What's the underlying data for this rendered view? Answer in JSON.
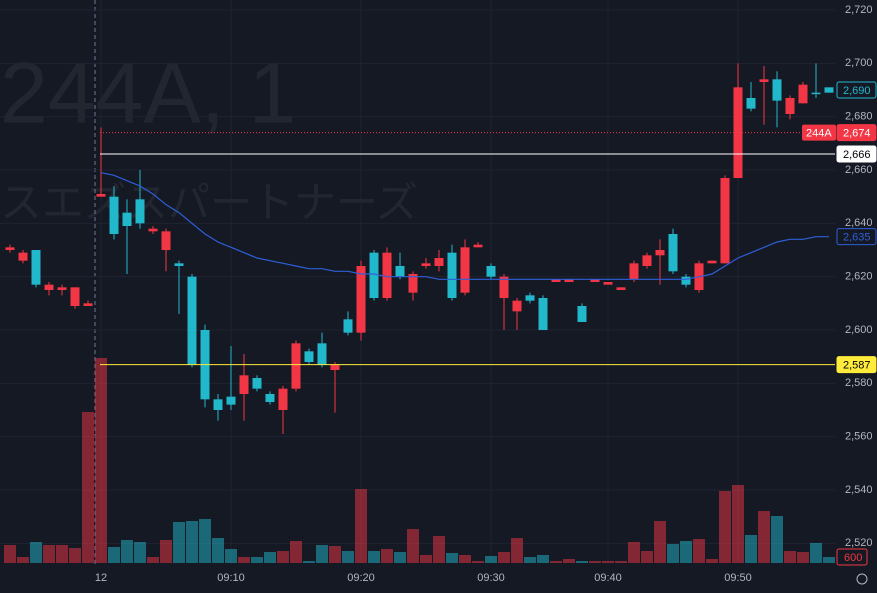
{
  "chart_data": {
    "type": "candlestick",
    "watermark": "244A, 1",
    "watermark_name": "スエズスパートナーズ",
    "categories": [
      null,
      null,
      null,
      null,
      null,
      null,
      null,
      "12",
      null,
      null,
      null,
      null,
      null,
      null,
      null,
      null,
      null,
      "09:10",
      null,
      null,
      null,
      null,
      null,
      null,
      null,
      null,
      null,
      "09:20",
      null,
      null,
      null,
      null,
      null,
      null,
      null,
      null,
      null,
      "09:30",
      null,
      null,
      null,
      null,
      null,
      null,
      null,
      null,
      "09:40",
      null,
      null,
      null,
      null,
      null,
      null,
      null,
      null,
      null,
      "09:50",
      null,
      null,
      null,
      null,
      null,
      null,
      null
    ],
    "open": [
      2631,
      2629,
      2617,
      2617,
      2616,
      2616,
      2610,
      2651,
      2636,
      2639,
      2640,
      2638,
      2637,
      2624,
      2587,
      2574,
      2570,
      2572,
      2583,
      2578,
      2573,
      2578,
      2595,
      2588,
      2587,
      2587,
      2599,
      2624,
      2612,
      2629,
      2620,
      2621,
      2625,
      2627,
      2612,
      2631,
      2632,
      2620,
      2620,
      2611,
      2611,
      2600,
      2619,
      2619,
      2603,
      2619,
      2618,
      2616,
      2625,
      2628,
      2630,
      2622,
      2617,
      2625,
      2626,
      2657,
      2691,
      2683,
      2694,
      2686,
      2687,
      2692,
      2689,
      2689
    ],
    "high": [
      2632,
      2630,
      2630,
      2618,
      2617,
      2616,
      2611,
      2676,
      2654,
      2649,
      2660,
      2639,
      2638,
      2626,
      2621,
      2602,
      2576,
      2594,
      2591,
      2583,
      2577,
      2579,
      2596,
      2593,
      2599,
      2588,
      2607,
      2626,
      2630,
      2631,
      2629,
      2622,
      2627,
      2630,
      2632,
      2634,
      2633,
      2625,
      2621,
      2612,
      2614,
      2613,
      2619,
      2619,
      2610,
      2619,
      2618,
      2616,
      2626,
      2629,
      2634,
      2638,
      2621,
      2626,
      2626,
      2658,
      2700,
      2693,
      2699,
      2697,
      2688,
      2693,
      2700,
      2691
    ],
    "low": [
      2629,
      2625,
      2616,
      2613,
      2613,
      2608,
      2609,
      2650,
      2634,
      2621,
      2638,
      2636,
      2622,
      2606,
      2586,
      2571,
      2566,
      2570,
      2566,
      2577,
      2572,
      2561,
      2577,
      2587,
      2586,
      2569,
      2598,
      2596,
      2611,
      2611,
      2619,
      2611,
      2623,
      2622,
      2611,
      2613,
      2631,
      2619,
      2600,
      2600,
      2610,
      2600,
      2618,
      2618,
      2603,
      2618,
      2617,
      2615,
      2618,
      2623,
      2617,
      2621,
      2616,
      2614,
      2625,
      2625,
      2657,
      2682,
      2677,
      2676,
      2679,
      2685,
      2687,
      2689
    ],
    "close": [
      2630,
      2626,
      2630,
      2615,
      2615,
      2609,
      2609,
      2650,
      2650,
      2644,
      2649,
      2637,
      2630,
      2625,
      2620,
      2600,
      2574,
      2575,
      2576,
      2582,
      2576,
      2570,
      2578,
      2592,
      2595,
      2585,
      2604,
      2599,
      2629,
      2612,
      2624,
      2614,
      2624,
      2624,
      2629,
      2614,
      2631,
      2624,
      2612,
      2607,
      2613,
      2612,
      2618,
      2618,
      2609,
      2618,
      2617,
      2615,
      2619,
      2624,
      2628,
      2636,
      2620,
      2615,
      2625,
      2625,
      2657,
      2687,
      2693,
      2694,
      2681,
      2685,
      2689,
      2691
    ],
    "volume": [
      1800,
      600,
      2100,
      1800,
      1800,
      1500,
      15100,
      20500,
      1600,
      2300,
      2100,
      600,
      2300,
      4100,
      4200,
      4400,
      2500,
      1400,
      600,
      600,
      1100,
      1200,
      2200,
      200,
      1800,
      1700,
      1200,
      7400,
      1200,
      1400,
      1100,
      3400,
      800,
      2700,
      1000,
      800,
      200,
      700,
      1100,
      2500,
      600,
      800,
      200,
      400,
      200,
      200,
      200,
      200,
      2100,
      1200,
      4200,
      1900,
      2200,
      2400,
      400,
      7200,
      7800,
      2800,
      5200,
      4700,
      1200,
      1100,
      2000,
      600
    ],
    "ma": [
      null,
      null,
      null,
      null,
      null,
      null,
      null,
      2659,
      2658,
      2656,
      2654,
      2651,
      2647,
      2644,
      2640,
      2636,
      2633,
      2631,
      2629,
      2627,
      2626,
      2625,
      2624,
      2623,
      2623,
      2622,
      2622,
      2621,
      2621,
      2620,
      2620,
      2620,
      2620,
      2619,
      2619,
      2619,
      2619,
      2619,
      2619,
      2619,
      2619,
      2619,
      2619,
      2619,
      2619,
      2619,
      2619,
      2619,
      2619,
      2619,
      2619,
      2619,
      2619,
      2620,
      2621,
      2624,
      2627,
      2629,
      2631,
      2633,
      2634,
      2634,
      2635,
      2635
    ],
    "up_color": "#22b8cc",
    "down_color": "#f23645",
    "ma_color": "#2e5fd9",
    "ylim": [
      2512,
      2724
    ],
    "yticks": [
      {
        "value": 2520,
        "label": "2,520"
      },
      {
        "value": 2540,
        "label": "2,540"
      },
      {
        "value": 2560,
        "label": "2,560"
      },
      {
        "value": 2580,
        "label": "2,580"
      },
      {
        "value": 2600,
        "label": "2,600"
      },
      {
        "value": 2620,
        "label": "2,620"
      },
      {
        "value": 2640,
        "label": "2,640"
      },
      {
        "value": 2660,
        "label": "2,660"
      },
      {
        "value": 2680,
        "label": "2,680"
      },
      {
        "value": 2700,
        "label": "2,700"
      },
      {
        "value": 2720,
        "label": "2,720"
      }
    ],
    "grid": true,
    "price_tags": [
      {
        "value": 2690,
        "label": "2,690",
        "color": "#22b8cc",
        "filled": false,
        "line": "none"
      },
      {
        "value": 2674,
        "label": "2,674",
        "name": "244A",
        "color": "#f23645",
        "filled": true,
        "line": "dotted"
      },
      {
        "value": 2666,
        "label": "2,666",
        "color": "#ffffff",
        "filled": true,
        "line": "solid"
      },
      {
        "value": 2635,
        "label": "2,635",
        "color": "#2e5fd9",
        "filled": false,
        "line": "none"
      },
      {
        "value": 2587,
        "label": "2,587",
        "color": "#ffeb3b",
        "filled": true,
        "line": "solid"
      }
    ],
    "volume_tag": {
      "value": 600,
      "label": "600",
      "color": "#f23645"
    }
  }
}
